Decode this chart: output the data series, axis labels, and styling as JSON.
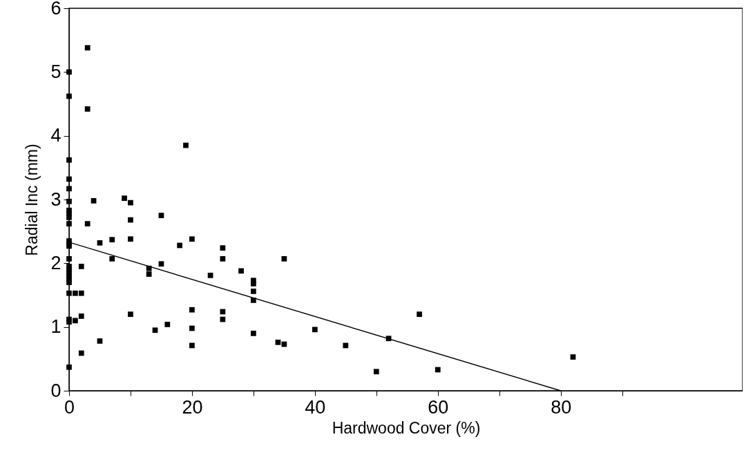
{
  "chart_data": {
    "type": "scatter",
    "xlabel": "Hardwood Cover (%)",
    "ylabel": "Radial Inc (mm)",
    "marker": "square",
    "xlim": [
      0,
      109.6
    ],
    "xticks": [
      0,
      {
        "value": 10,
        "label": null
      },
      20,
      {
        "value": 30,
        "label": null
      },
      40,
      {
        "value": 50,
        "label": null
      },
      60,
      {
        "value": 70,
        "label": null
      },
      80,
      {
        "value": 90,
        "label": null
      }
    ],
    "ylim": [
      0,
      6
    ],
    "yticks": [
      0,
      1,
      2,
      3,
      4,
      5,
      6
    ],
    "series": [
      {
        "color": "#000000",
        "x": [
          0,
          0,
          0,
          0,
          0,
          0,
          0,
          0,
          0,
          0,
          0,
          0,
          0,
          0,
          0,
          0,
          0,
          0,
          0,
          0,
          0,
          0,
          0,
          0,
          1,
          1,
          2,
          2,
          2,
          2,
          3,
          3,
          3,
          4,
          5,
          5,
          7,
          7,
          9,
          10,
          10,
          10,
          10,
          13,
          13,
          14,
          15,
          15,
          16,
          18,
          19,
          20,
          20,
          20,
          20,
          23,
          25,
          25,
          25,
          25,
          28,
          30,
          30,
          30,
          30,
          30,
          34,
          35,
          35,
          40,
          45,
          50,
          52,
          57,
          60,
          82
        ],
        "values": [
          5.0,
          4.62,
          3.62,
          3.32,
          3.17,
          2.97,
          2.83,
          2.78,
          2.72,
          2.62,
          2.35,
          2.3,
          2.27,
          2.07,
          1.95,
          1.9,
          1.85,
          1.8,
          1.75,
          1.7,
          1.53,
          1.12,
          1.08,
          0.37,
          1.53,
          1.1,
          1.95,
          1.53,
          1.17,
          0.59,
          5.38,
          4.42,
          2.62,
          2.98,
          2.32,
          0.78,
          2.37,
          2.07,
          3.02,
          2.95,
          2.68,
          2.38,
          1.2,
          1.92,
          1.83,
          0.95,
          2.75,
          1.99,
          1.04,
          2.28,
          3.85,
          2.38,
          1.27,
          0.98,
          0.71,
          1.81,
          2.24,
          2.07,
          1.24,
          1.12,
          1.88,
          1.73,
          1.68,
          1.56,
          1.42,
          0.9,
          0.76,
          2.07,
          0.73,
          0.96,
          0.71,
          0.3,
          0.82,
          1.2,
          0.33,
          0.53
        ]
      },
      {
        "type": "line",
        "marker": "none",
        "color": "#000000",
        "x": [
          0,
          80
        ],
        "values": [
          2.33,
          0
        ]
      }
    ]
  }
}
